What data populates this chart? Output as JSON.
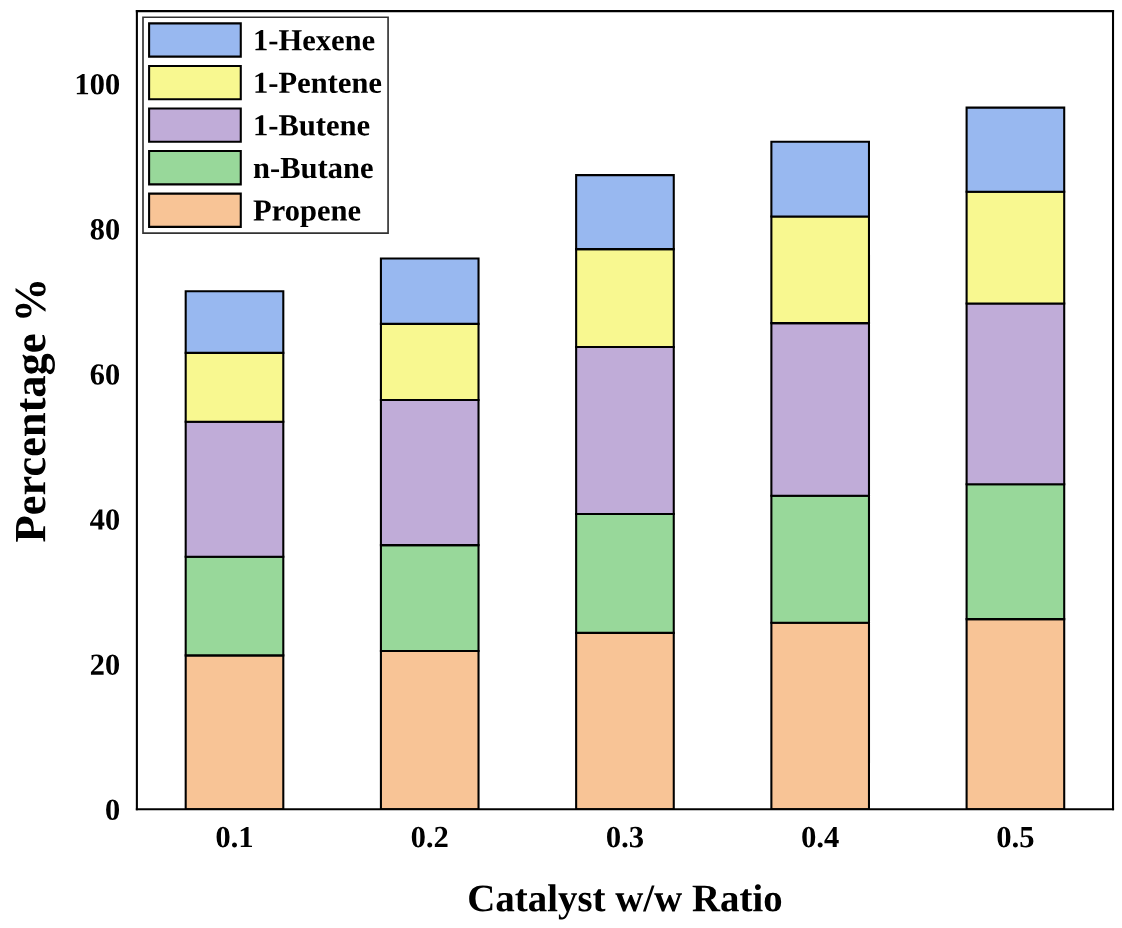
{
  "chart_data": {
    "type": "bar",
    "stacked": true,
    "xlabel": "Catalyst w/w Ratio",
    "ylabel": "Percentage %",
    "categories": [
      "0.1",
      "0.2",
      "0.3",
      "0.4",
      "0.5"
    ],
    "series": [
      {
        "name": "Propene",
        "color": "#f8c496",
        "values": [
          21.2,
          21.8,
          24.3,
          25.7,
          26.2
        ]
      },
      {
        "name": "n-Butane",
        "color": "#98d89a",
        "values": [
          13.6,
          14.6,
          16.4,
          17.5,
          18.6
        ]
      },
      {
        "name": "1-Butene",
        "color": "#c0acd8",
        "values": [
          18.6,
          20.0,
          23.0,
          23.8,
          24.9
        ]
      },
      {
        "name": "1-Pentene",
        "color": "#f8f890",
        "values": [
          9.5,
          10.5,
          13.5,
          14.7,
          15.4
        ]
      },
      {
        "name": "1-Hexene",
        "color": "#98b8f0",
        "values": [
          8.5,
          9.0,
          10.2,
          10.3,
          11.6
        ]
      }
    ],
    "ylim": [
      0,
      110
    ],
    "yticks": [
      0,
      20,
      40,
      60,
      80,
      100
    ],
    "grid": false,
    "legend": "top left"
  }
}
